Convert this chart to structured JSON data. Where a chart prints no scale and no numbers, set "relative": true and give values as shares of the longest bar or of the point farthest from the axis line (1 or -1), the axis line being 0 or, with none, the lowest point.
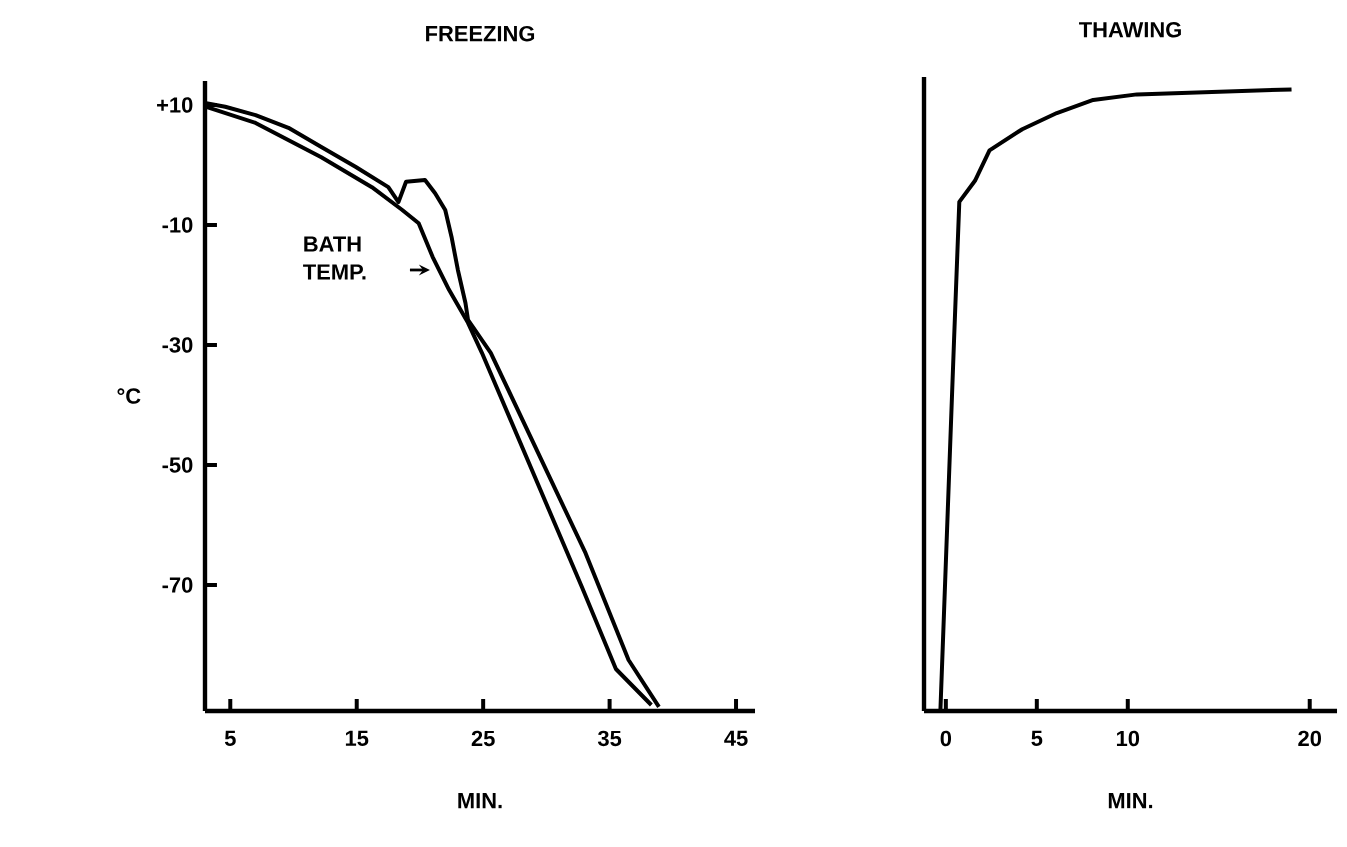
{
  "chart_data": [
    {
      "type": "line",
      "title": "FREEZING",
      "xlabel": "MIN.",
      "ylabel": "°C",
      "xlim": [
        3,
        46.5
      ],
      "ylim": [
        -91,
        14
      ],
      "xticks": [
        5,
        15,
        25,
        35,
        45
      ],
      "yticks": [
        {
          "value": 10,
          "label": "+10"
        },
        -10,
        -30,
        -50,
        -70
      ],
      "series": [
        {
          "name": "BATH TEMP.",
          "color": "#000000",
          "x": [
            3.1,
            7,
            12.2,
            16.2,
            18.6,
            19.9,
            21,
            22.3,
            23.8,
            24.9,
            32.8,
            35.5,
            38.3
          ],
          "values": [
            9.7,
            7,
            1.3,
            -3.7,
            -7.5,
            -9.7,
            -15.3,
            -20.8,
            -26.3,
            -31.3,
            -70.3,
            -84,
            -90
          ]
        },
        {
          "color": "#000000",
          "x": [
            3.1,
            4.6,
            7,
            9.6,
            12.2,
            14.9,
            17.5,
            18.3,
            18.9,
            20.4,
            21.2,
            22,
            22.5,
            23,
            23.6,
            23.8,
            25.6,
            33.1,
            36.5,
            38.9
          ],
          "values": [
            10.3,
            9.7,
            8.3,
            6.2,
            3,
            -0.3,
            -3.7,
            -6.2,
            -2.8,
            -2.5,
            -4.7,
            -7.5,
            -12,
            -17.5,
            -23,
            -25.8,
            -31.3,
            -64.7,
            -82.5,
            -90.3
          ]
        }
      ]
    },
    {
      "type": "line",
      "title": "THAWING",
      "xlabel": "MIN.",
      "tick_labels": "x",
      "xlim": [
        -1.2,
        21.5
      ],
      "relative": true,
      "xticks": [
        0,
        5,
        10,
        20
      ],
      "series": [
        {
          "color": "#000000",
          "x": [
            -0.3,
            0.45,
            0.74,
            1.6,
            2.4,
            4.2,
            6.1,
            8.1,
            10.5,
            19
          ],
          "values": [
            0,
            0.596,
            0.819,
            0.853,
            0.902,
            0.936,
            0.962,
            0.983,
            0.992,
            1
          ]
        }
      ]
    }
  ]
}
